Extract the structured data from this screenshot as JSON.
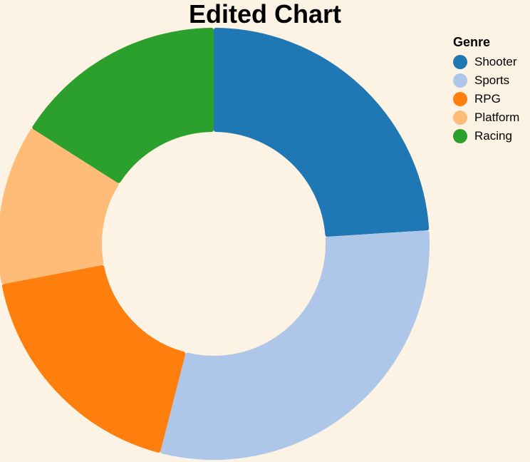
{
  "chart_data": {
    "type": "pie",
    "title": "Edited Chart",
    "legend_title": "Genre",
    "legend_position": "top-right",
    "categories": [
      "Shooter",
      "Sports",
      "RPG",
      "Platform",
      "Racing"
    ],
    "values": [
      24,
      30,
      18,
      12,
      16
    ],
    "colors": [
      "#1f77b4",
      "#aec7e8",
      "#ff7f0e",
      "#ffbb78",
      "#2ca02c"
    ],
    "hole": true
  }
}
